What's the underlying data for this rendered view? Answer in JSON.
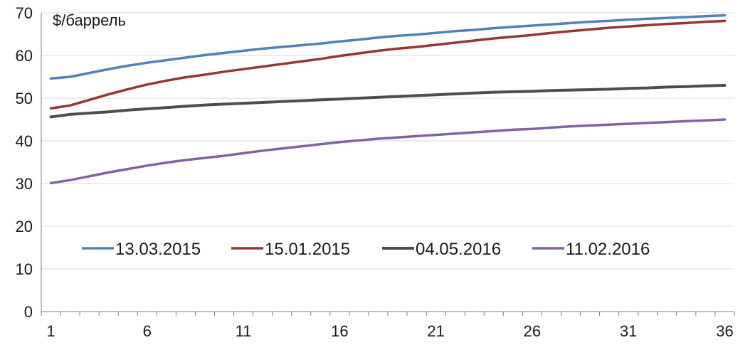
{
  "chart_data": {
    "type": "line",
    "unit_label": "$/баррель",
    "ylim": [
      0,
      70
    ],
    "yticks": [
      0,
      10,
      20,
      30,
      40,
      50,
      60,
      70
    ],
    "xlim": [
      1,
      36
    ],
    "xticks": [
      1,
      6,
      11,
      16,
      21,
      26,
      31,
      36
    ],
    "grid": "horizontal",
    "legend_position": "lower-middle",
    "x": [
      1,
      2,
      3,
      4,
      5,
      6,
      7,
      8,
      9,
      10,
      11,
      12,
      13,
      14,
      15,
      16,
      17,
      18,
      19,
      20,
      21,
      22,
      23,
      24,
      25,
      26,
      27,
      28,
      29,
      30,
      31,
      32,
      33,
      34,
      35,
      36
    ],
    "series": [
      {
        "name": "13.03.2015",
        "color": "#4f81bd",
        "values": [
          54.6,
          55.0,
          55.9,
          56.8,
          57.6,
          58.3,
          58.9,
          59.5,
          60.1,
          60.6,
          61.1,
          61.6,
          62.0,
          62.4,
          62.8,
          63.3,
          63.7,
          64.2,
          64.6,
          64.9,
          65.3,
          65.7,
          66.0,
          66.4,
          66.7,
          67.0,
          67.3,
          67.6,
          67.9,
          68.1,
          68.4,
          68.6,
          68.8,
          69.0,
          69.2,
          69.4
        ]
      },
      {
        "name": "15.01.2015",
        "color": "#953735",
        "values": [
          47.6,
          48.3,
          49.6,
          50.9,
          52.1,
          53.2,
          54.1,
          54.9,
          55.5,
          56.2,
          56.8,
          57.4,
          58.0,
          58.6,
          59.2,
          59.9,
          60.5,
          61.1,
          61.6,
          62.0,
          62.5,
          63.0,
          63.5,
          64.0,
          64.4,
          64.8,
          65.3,
          65.7,
          66.1,
          66.5,
          66.8,
          67.1,
          67.4,
          67.6,
          67.9,
          68.1
        ]
      },
      {
        "name": "04.05.2016",
        "color": "#4d4d4d",
        "values": [
          45.6,
          46.2,
          46.5,
          46.8,
          47.2,
          47.5,
          47.8,
          48.1,
          48.4,
          48.6,
          48.8,
          49.0,
          49.2,
          49.4,
          49.6,
          49.8,
          50.0,
          50.2,
          50.4,
          50.6,
          50.8,
          51.0,
          51.2,
          51.4,
          51.5,
          51.6,
          51.8,
          51.9,
          52.0,
          52.1,
          52.3,
          52.4,
          52.6,
          52.7,
          52.9,
          53.0
        ]
      },
      {
        "name": "11.02.2016",
        "color": "#8064a2",
        "values": [
          30.1,
          30.8,
          31.7,
          32.6,
          33.4,
          34.2,
          34.9,
          35.5,
          36.0,
          36.5,
          37.1,
          37.7,
          38.2,
          38.7,
          39.2,
          39.7,
          40.1,
          40.5,
          40.8,
          41.1,
          41.4,
          41.7,
          42.0,
          42.3,
          42.6,
          42.8,
          43.1,
          43.4,
          43.6,
          43.8,
          44.0,
          44.2,
          44.4,
          44.6,
          44.8,
          45.0
        ]
      }
    ]
  }
}
